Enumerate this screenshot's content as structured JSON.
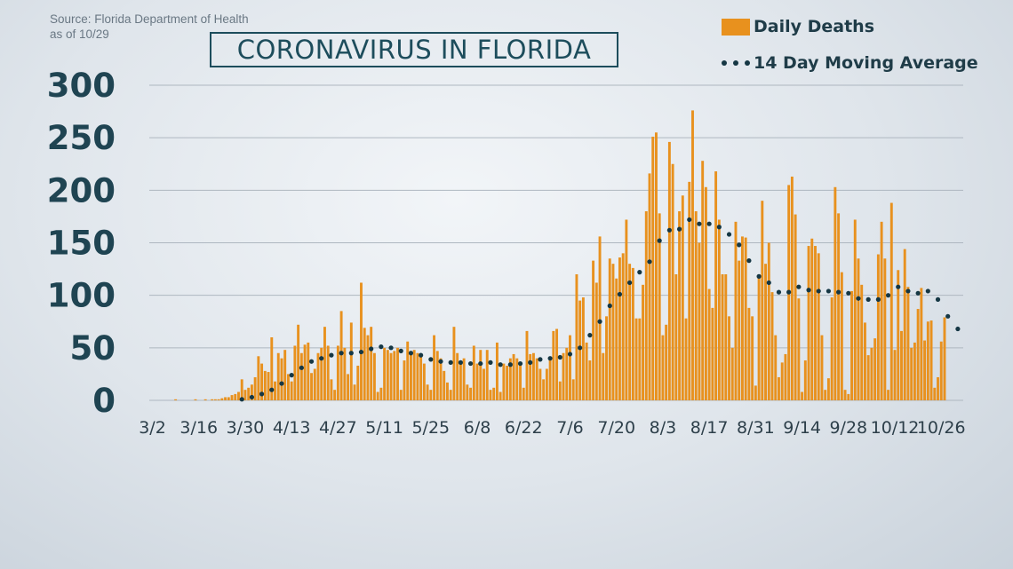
{
  "source": {
    "line1": "Source: Florida Department of Health",
    "line2": "as of 10/29"
  },
  "colors": {
    "bar": "#e8911e",
    "dot": "#153744",
    "grid": "#aeb7c0",
    "axis_text": "#1f4452"
  },
  "chart_data": {
    "type": "bar",
    "title": "CORONAVIRUS IN FLORIDA",
    "ylim": [
      0,
      300
    ],
    "yticks": [
      0,
      50,
      100,
      150,
      200,
      250,
      300
    ],
    "xtick_labels": [
      "3/2",
      "3/16",
      "3/30",
      "4/13",
      "4/27",
      "5/11",
      "5/25",
      "6/8",
      "6/22",
      "7/6",
      "7/20",
      "8/3",
      "8/17",
      "8/31",
      "9/14",
      "9/28",
      "10/12",
      "10/26"
    ],
    "xtick_day_index": [
      0,
      14,
      28,
      42,
      56,
      70,
      84,
      98,
      112,
      126,
      140,
      154,
      168,
      182,
      196,
      210,
      224,
      238
    ],
    "grid": true,
    "legend_position": "top-right",
    "series": [
      {
        "name": "Daily Deaths",
        "kind": "bar",
        "values": [
          0,
          0,
          0,
          0,
          0,
          0,
          0,
          1,
          0,
          0,
          0,
          0,
          0,
          1,
          0,
          0,
          1,
          0,
          1,
          1,
          1,
          2,
          3,
          3,
          5,
          6,
          8,
          20,
          10,
          12,
          15,
          22,
          42,
          35,
          28,
          27,
          60,
          18,
          45,
          40,
          48,
          25,
          18,
          52,
          72,
          45,
          53,
          55,
          26,
          30,
          45,
          50,
          70,
          52,
          20,
          10,
          52,
          85,
          50,
          25,
          74,
          15,
          33,
          112,
          69,
          62,
          70,
          45,
          8,
          12,
          50,
          48,
          45,
          47,
          50,
          10,
          38,
          56,
          46,
          48,
          45,
          42,
          35,
          15,
          10,
          62,
          47,
          40,
          28,
          17,
          10,
          70,
          45,
          35,
          40,
          15,
          12,
          52,
          35,
          48,
          30,
          48,
          10,
          12,
          55,
          8,
          35,
          33,
          40,
          44,
          40,
          35,
          12,
          66,
          44,
          45,
          40,
          30,
          20,
          30,
          40,
          66,
          68,
          18,
          45,
          50,
          62,
          20,
          120,
          95,
          98,
          55,
          38,
          133,
          112,
          156,
          45,
          80,
          135,
          130,
          116,
          136,
          140,
          172,
          130,
          126,
          78,
          78,
          110,
          180,
          216,
          251,
          255,
          178,
          62,
          72,
          246,
          225,
          120,
          180,
          195,
          78,
          208,
          276,
          180,
          150,
          228,
          203,
          106,
          88,
          218,
          172,
          120,
          120,
          80,
          50,
          170,
          133,
          156,
          155,
          88,
          80,
          14,
          120,
          190,
          130,
          150,
          103,
          62,
          22,
          36,
          44,
          205,
          213,
          177,
          97,
          8,
          38,
          147,
          154,
          147,
          140,
          62,
          10,
          21,
          98,
          203,
          178,
          122,
          10,
          6,
          104,
          172,
          135,
          110,
          74,
          43,
          50,
          59,
          139,
          170,
          135,
          10,
          188,
          48,
          124,
          66,
          144,
          108,
          50,
          55,
          87,
          107,
          57,
          75,
          76,
          12,
          22,
          56,
          79
        ],
        "color": "#e8911e"
      },
      {
        "name": "14 Day Moving Average",
        "kind": "dots",
        "points": [
          [
            27,
            1
          ],
          [
            30,
            3
          ],
          [
            33,
            6
          ],
          [
            36,
            10
          ],
          [
            39,
            16
          ],
          [
            42,
            24
          ],
          [
            45,
            31
          ],
          [
            48,
            37
          ],
          [
            51,
            40
          ],
          [
            54,
            43
          ],
          [
            57,
            45
          ],
          [
            60,
            45
          ],
          [
            63,
            46
          ],
          [
            66,
            49
          ],
          [
            69,
            51
          ],
          [
            72,
            50
          ],
          [
            75,
            47
          ],
          [
            78,
            45
          ],
          [
            81,
            43
          ],
          [
            84,
            39
          ],
          [
            87,
            37
          ],
          [
            90,
            36
          ],
          [
            93,
            36
          ],
          [
            96,
            35
          ],
          [
            99,
            35
          ],
          [
            102,
            36
          ],
          [
            105,
            34
          ],
          [
            108,
            34
          ],
          [
            111,
            35
          ],
          [
            114,
            36
          ],
          [
            117,
            39
          ],
          [
            120,
            40
          ],
          [
            123,
            41
          ],
          [
            126,
            44
          ],
          [
            129,
            50
          ],
          [
            132,
            62
          ],
          [
            135,
            75
          ],
          [
            138,
            90
          ],
          [
            141,
            101
          ],
          [
            144,
            112
          ],
          [
            147,
            122
          ],
          [
            150,
            132
          ],
          [
            153,
            152
          ],
          [
            156,
            162
          ],
          [
            159,
            163
          ],
          [
            162,
            172
          ],
          [
            165,
            168
          ],
          [
            168,
            168
          ],
          [
            171,
            165
          ],
          [
            174,
            158
          ],
          [
            177,
            148
          ],
          [
            180,
            133
          ],
          [
            183,
            118
          ],
          [
            186,
            112
          ],
          [
            189,
            103
          ],
          [
            192,
            103
          ],
          [
            195,
            108
          ],
          [
            198,
            105
          ],
          [
            201,
            104
          ],
          [
            204,
            104
          ],
          [
            207,
            103
          ],
          [
            210,
            102
          ],
          [
            213,
            97
          ],
          [
            216,
            96
          ],
          [
            219,
            96
          ],
          [
            222,
            100
          ],
          [
            225,
            108
          ],
          [
            228,
            104
          ],
          [
            231,
            102
          ],
          [
            234,
            104
          ],
          [
            237,
            96
          ],
          [
            240,
            80
          ],
          [
            243,
            68
          ]
        ],
        "color": "#153744"
      }
    ]
  }
}
